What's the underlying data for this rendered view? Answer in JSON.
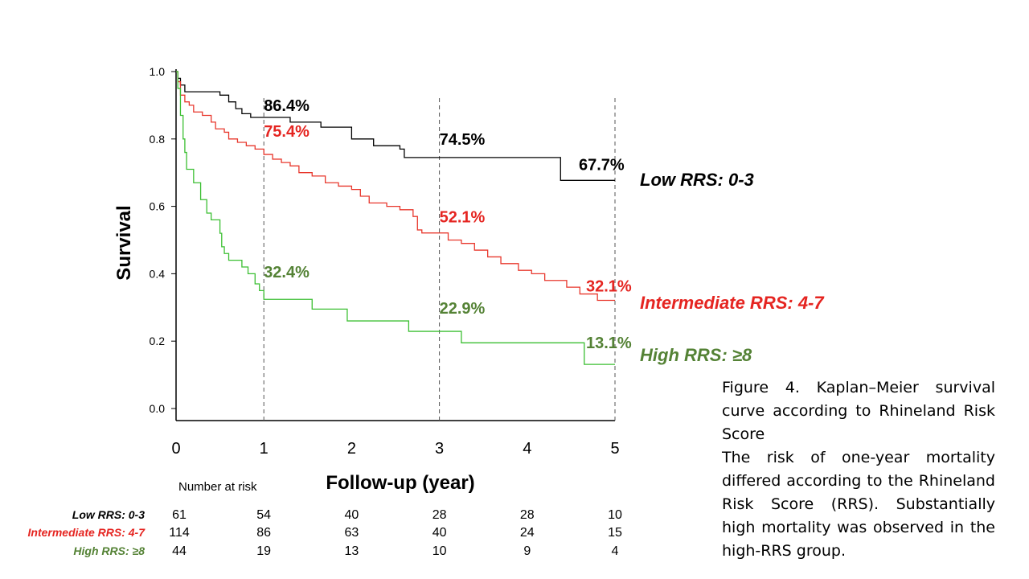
{
  "chart_data": {
    "type": "line",
    "step": true,
    "xlabel": "Follow-up (year)",
    "ylabel": "Survival",
    "xlim": [
      0,
      5
    ],
    "ylim": [
      0,
      1
    ],
    "xticks": [
      "0",
      "1",
      "2",
      "3",
      "4",
      "5"
    ],
    "yticks": [
      "0.0",
      "0.2",
      "0.4",
      "0.6",
      "0.8",
      "1.0"
    ],
    "reference_lines_x": [
      1,
      3,
      5
    ],
    "grid": false,
    "series": [
      {
        "name": "Low RRS: 0-3",
        "color": "#000000",
        "label_color": "#000000",
        "points": [
          [
            0,
            1.0
          ],
          [
            0.02,
            0.98
          ],
          [
            0.05,
            0.96
          ],
          [
            0.1,
            0.94
          ],
          [
            0.5,
            0.93
          ],
          [
            0.6,
            0.91
          ],
          [
            0.68,
            0.89
          ],
          [
            0.75,
            0.875
          ],
          [
            0.85,
            0.864
          ],
          [
            1.0,
            0.864
          ],
          [
            1.3,
            0.85
          ],
          [
            1.65,
            0.835
          ],
          [
            2.0,
            0.8
          ],
          [
            2.2,
            0.8
          ],
          [
            2.25,
            0.78
          ],
          [
            2.55,
            0.77
          ],
          [
            2.6,
            0.745
          ],
          [
            3.0,
            0.745
          ],
          [
            4.0,
            0.745
          ],
          [
            4.35,
            0.745
          ],
          [
            4.38,
            0.677
          ],
          [
            5.0,
            0.677
          ]
        ],
        "annotations": [
          {
            "x": 1,
            "text": "86.4%"
          },
          {
            "x": 3,
            "text": "74.5%"
          },
          {
            "x": 5,
            "text": "67.7%"
          }
        ]
      },
      {
        "name": "Intermediate RRS: 4-7",
        "color": "#e8372c",
        "label_color": "#e52521",
        "points": [
          [
            0,
            1.0
          ],
          [
            0.02,
            0.97
          ],
          [
            0.05,
            0.93
          ],
          [
            0.1,
            0.91
          ],
          [
            0.15,
            0.9
          ],
          [
            0.2,
            0.88
          ],
          [
            0.3,
            0.87
          ],
          [
            0.4,
            0.85
          ],
          [
            0.45,
            0.83
          ],
          [
            0.55,
            0.82
          ],
          [
            0.6,
            0.8
          ],
          [
            0.7,
            0.79
          ],
          [
            0.8,
            0.78
          ],
          [
            0.9,
            0.77
          ],
          [
            1.0,
            0.754
          ],
          [
            1.1,
            0.74
          ],
          [
            1.2,
            0.73
          ],
          [
            1.3,
            0.72
          ],
          [
            1.4,
            0.7
          ],
          [
            1.55,
            0.69
          ],
          [
            1.7,
            0.67
          ],
          [
            1.85,
            0.66
          ],
          [
            2.0,
            0.65
          ],
          [
            2.1,
            0.63
          ],
          [
            2.2,
            0.61
          ],
          [
            2.4,
            0.6
          ],
          [
            2.55,
            0.59
          ],
          [
            2.7,
            0.57
          ],
          [
            2.75,
            0.53
          ],
          [
            2.8,
            0.521
          ],
          [
            3.0,
            0.521
          ],
          [
            3.1,
            0.5
          ],
          [
            3.25,
            0.49
          ],
          [
            3.4,
            0.47
          ],
          [
            3.55,
            0.45
          ],
          [
            3.7,
            0.43
          ],
          [
            3.9,
            0.41
          ],
          [
            4.05,
            0.4
          ],
          [
            4.2,
            0.38
          ],
          [
            4.45,
            0.36
          ],
          [
            4.6,
            0.34
          ],
          [
            4.8,
            0.321
          ],
          [
            5.0,
            0.321
          ]
        ],
        "annotations": [
          {
            "x": 1,
            "text": "75.4%"
          },
          {
            "x": 3,
            "text": "52.1%"
          },
          {
            "x": 5,
            "text": "32.1%"
          }
        ]
      },
      {
        "name": "High RRS: ≥8",
        "color": "#3bbf32",
        "label_color": "#548235",
        "points": [
          [
            0,
            1.0
          ],
          [
            0.02,
            0.95
          ],
          [
            0.05,
            0.87
          ],
          [
            0.08,
            0.8
          ],
          [
            0.1,
            0.76
          ],
          [
            0.12,
            0.71
          ],
          [
            0.2,
            0.67
          ],
          [
            0.28,
            0.62
          ],
          [
            0.35,
            0.58
          ],
          [
            0.4,
            0.56
          ],
          [
            0.5,
            0.52
          ],
          [
            0.52,
            0.48
          ],
          [
            0.55,
            0.46
          ],
          [
            0.6,
            0.44
          ],
          [
            0.75,
            0.42
          ],
          [
            0.82,
            0.4
          ],
          [
            0.9,
            0.37
          ],
          [
            0.95,
            0.35
          ],
          [
            1.0,
            0.324
          ],
          [
            1.5,
            0.324
          ],
          [
            1.55,
            0.295
          ],
          [
            1.9,
            0.295
          ],
          [
            1.95,
            0.26
          ],
          [
            2.6,
            0.26
          ],
          [
            2.65,
            0.229
          ],
          [
            3.0,
            0.229
          ],
          [
            3.22,
            0.229
          ],
          [
            3.25,
            0.195
          ],
          [
            4.6,
            0.195
          ],
          [
            4.65,
            0.131
          ],
          [
            5.0,
            0.131
          ]
        ],
        "annotations": [
          {
            "x": 1,
            "text": "32.4%"
          },
          {
            "x": 3,
            "text": "22.9%"
          },
          {
            "x": 5,
            "text": "13.1%"
          }
        ]
      }
    ],
    "number_at_risk": {
      "title": "Number at risk",
      "rows": [
        {
          "label": "Low RRS: 0-3",
          "color": "#000000",
          "values": [
            "61",
            "54",
            "40",
            "28",
            "28",
            "10"
          ]
        },
        {
          "label": "Intermediate RRS: 4-7",
          "color": "#e52521",
          "values": [
            "114",
            "86",
            "63",
            "40",
            "24",
            "15"
          ]
        },
        {
          "label": "High RRS: ≥8",
          "color": "#548235",
          "values": [
            "44",
            "19",
            "13",
            "10",
            "9",
            "4"
          ]
        }
      ]
    }
  },
  "caption": {
    "title": "Figure 4. Kaplan–Meier survival curve according to Rhineland Risk Score",
    "body": "The risk of one-year mortality differed according to the Rhineland Risk Score (RRS). Substantially high mortality was observed in the high-RRS group."
  }
}
